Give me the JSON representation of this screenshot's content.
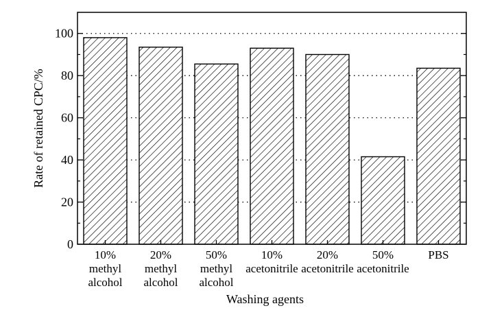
{
  "chart_data": {
    "type": "bar",
    "title": "",
    "xlabel": "Washing agents",
    "ylabel": "Rate of retained CPC/%",
    "ylim": [
      0,
      110
    ],
    "yticks": [
      0,
      20,
      40,
      60,
      80,
      100
    ],
    "grid": "horizontal dotted",
    "bar_fill": "diagonal hatch",
    "categories": [
      [
        "10%",
        "methyl",
        "alcohol"
      ],
      [
        "20%",
        "methyl",
        "alcohol"
      ],
      [
        "50%",
        "methyl",
        "alcohol"
      ],
      [
        "10%",
        "acetonitrile"
      ],
      [
        "20%",
        "acetonitrile"
      ],
      [
        "50%",
        "acetonitrile"
      ],
      [
        "PBS"
      ]
    ],
    "values": [
      98,
      93.5,
      85.5,
      93,
      90,
      41.5,
      83.5
    ]
  }
}
